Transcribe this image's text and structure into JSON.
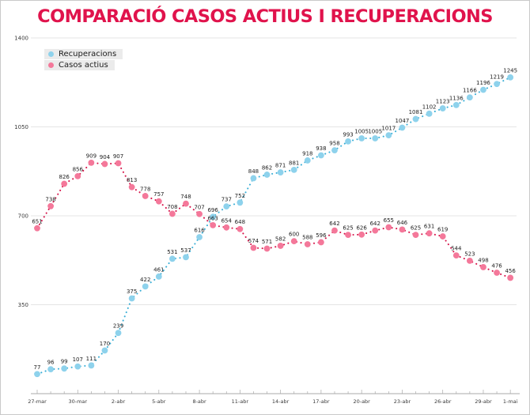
{
  "chart_data": {
    "type": "line",
    "title": "COMPARACIÓ CASOS ACTIUS I RECUPERACIONS",
    "title_color": "#e0134c",
    "xlabel": "",
    "ylabel": "",
    "x_tick_labels": [
      "27-mar",
      "30-mar",
      "2-abr",
      "5-abr",
      "8-abr",
      "11-abr",
      "14-abr",
      "17-abr",
      "20-abr",
      "23-abr",
      "26-abr",
      "29-abr",
      "1-mai"
    ],
    "x_tick_indices": [
      0,
      3,
      6,
      9,
      12,
      15,
      18,
      21,
      24,
      27,
      30,
      33,
      35
    ],
    "y_ticks": [
      350,
      700,
      1050,
      1400
    ],
    "ylim": [
      0,
      1400
    ],
    "grid": "horizontal",
    "legend_position": "top-left",
    "series": [
      {
        "name": "Recuperacions",
        "color": "#8ed2ec",
        "connector_color": "#38aed6",
        "values": [
          77,
          96,
          99,
          107,
          111,
          170,
          239,
          375,
          422,
          461,
          531,
          537,
          616,
          696,
          737,
          752,
          848,
          862,
          871,
          881,
          918,
          938,
          958,
          993,
          1005,
          1005,
          1017,
          1047,
          1081,
          1102,
          1123,
          1136,
          1166,
          1196,
          1219,
          1245
        ]
      },
      {
        "name": "Casos actius",
        "color": "#f4789a",
        "connector_color": "#d61349",
        "values": [
          651,
          738,
          826,
          856,
          909,
          904,
          907,
          813,
          778,
          757,
          708,
          748,
          707,
          663,
          654,
          648,
          574,
          571,
          582,
          600,
          588,
          596,
          642,
          625,
          626,
          642,
          655,
          646,
          625,
          631,
          619,
          544,
          523,
          498,
          476,
          456
        ]
      }
    ],
    "label_color": "#1c1c1c",
    "tick_label_color": "#3a3a3a",
    "gridline_color": "#e4e4e4",
    "axis_color": "#aaaaaa"
  }
}
